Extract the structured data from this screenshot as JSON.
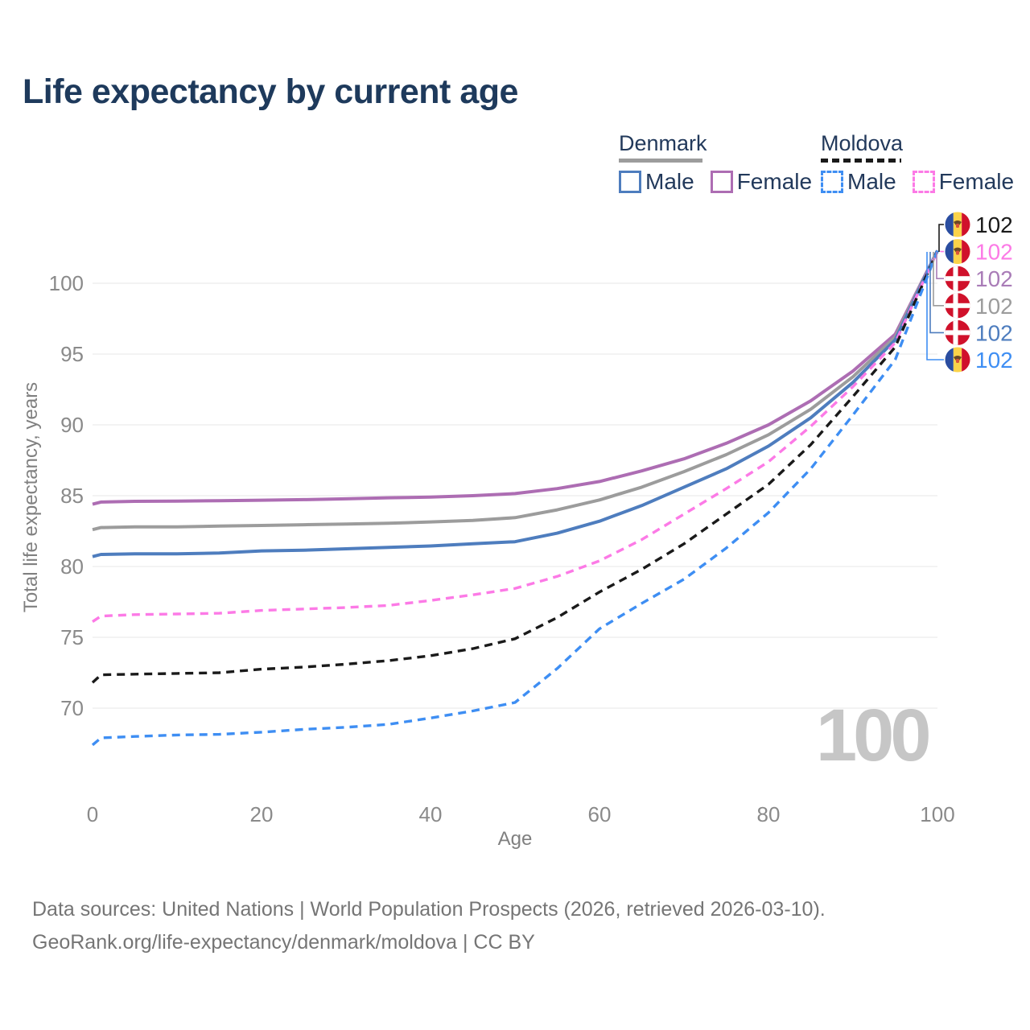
{
  "title": "Life expectancy by current age",
  "watermark": "100",
  "footer": {
    "line1": "Data sources: United Nations | World Population Prospects (2026, retrieved 2026-03-10).",
    "line2": "GeoRank.org/life-expectancy/denmark/moldova | CC BY"
  },
  "legend": {
    "groups": [
      {
        "country": "Denmark",
        "underline_style": "solid",
        "underline_color": "#9c9c9c",
        "underline_width": 104,
        "items": [
          {
            "label": "Male",
            "color": "#4e7dbe",
            "dashed": false
          },
          {
            "label": "Female",
            "color": "#ad6db3",
            "dashed": false
          }
        ]
      },
      {
        "country": "Moldova",
        "underline_style": "dashed",
        "underline_color": "#1a1a1a",
        "underline_width": 100,
        "items": [
          {
            "label": "Male",
            "color": "#3e8ef3",
            "dashed": true
          },
          {
            "label": "Female",
            "color": "#fc7ae6",
            "dashed": true
          }
        ]
      }
    ]
  },
  "chart_data": {
    "type": "line",
    "title": "Life expectancy by current age",
    "xlabel": "Age",
    "ylabel": "Total life expectancy, years",
    "x_ticks": [
      0,
      20,
      40,
      60,
      80,
      100
    ],
    "y_ticks": [
      70,
      75,
      80,
      85,
      90,
      95,
      100
    ],
    "xlim": [
      0,
      100
    ],
    "ylim": [
      66,
      103
    ],
    "grid": "horizontal-only",
    "legend_position": "top-right",
    "x": [
      0,
      1,
      5,
      10,
      15,
      20,
      25,
      30,
      35,
      40,
      45,
      50,
      55,
      60,
      65,
      70,
      75,
      80,
      85,
      90,
      95,
      100
    ],
    "series": [
      {
        "name": "Denmark Female",
        "country": "Denmark",
        "sex": "Female",
        "color": "#ad6db3",
        "dashed": false,
        "values": [
          84.4,
          84.55,
          84.6,
          84.62,
          84.65,
          84.68,
          84.72,
          84.78,
          84.85,
          84.9,
          85.0,
          85.15,
          85.5,
          86.0,
          86.75,
          87.6,
          88.7,
          90.0,
          91.7,
          93.8,
          96.4,
          102.3
        ]
      },
      {
        "name": "Denmark Both sexes",
        "country": "Denmark",
        "sex": "Both",
        "color": "#9c9c9c",
        "dashed": false,
        "values": [
          82.6,
          82.75,
          82.8,
          82.8,
          82.85,
          82.9,
          82.95,
          83.0,
          83.05,
          83.15,
          83.25,
          83.45,
          84.0,
          84.7,
          85.6,
          86.7,
          87.9,
          89.3,
          91.1,
          93.4,
          96.2,
          102.3
        ]
      },
      {
        "name": "Denmark Male",
        "country": "Denmark",
        "sex": "Male",
        "color": "#4e7dbe",
        "dashed": false,
        "values": [
          80.7,
          80.85,
          80.9,
          80.9,
          80.95,
          81.1,
          81.15,
          81.25,
          81.35,
          81.45,
          81.6,
          81.75,
          82.35,
          83.2,
          84.3,
          85.6,
          86.9,
          88.5,
          90.5,
          93.0,
          96.0,
          102.3
        ]
      },
      {
        "name": "Moldova Female",
        "country": "Moldova",
        "sex": "Female",
        "color": "#fc7ae6",
        "dashed": true,
        "values": [
          76.1,
          76.5,
          76.6,
          76.65,
          76.7,
          76.9,
          77.0,
          77.1,
          77.25,
          77.6,
          78.0,
          78.45,
          79.3,
          80.4,
          81.9,
          83.7,
          85.5,
          87.4,
          89.9,
          92.7,
          95.8,
          102.3
        ]
      },
      {
        "name": "Moldova Both sexes",
        "country": "Moldova",
        "sex": "Both",
        "color": "#1a1a1a",
        "dashed": true,
        "values": [
          71.8,
          72.35,
          72.4,
          72.45,
          72.5,
          72.75,
          72.9,
          73.1,
          73.35,
          73.7,
          74.2,
          74.9,
          76.4,
          78.2,
          79.8,
          81.6,
          83.7,
          85.8,
          88.6,
          92.0,
          95.5,
          102.3
        ]
      },
      {
        "name": "Moldova Male",
        "country": "Moldova",
        "sex": "Male",
        "color": "#3e8ef3",
        "dashed": true,
        "values": [
          67.4,
          67.9,
          68.0,
          68.1,
          68.15,
          68.3,
          68.5,
          68.65,
          68.85,
          69.3,
          69.8,
          70.4,
          72.8,
          75.6,
          77.4,
          79.1,
          81.3,
          83.8,
          86.9,
          90.7,
          94.6,
          102.3
        ]
      }
    ],
    "end_labels": [
      {
        "series": "Moldova Both sexes",
        "flag": "moldova-flag-icon",
        "value": "102",
        "color": "#1a1a1a"
      },
      {
        "series": "Moldova Female",
        "flag": "moldova-flag-icon",
        "value": "102",
        "color": "#fc7ae6"
      },
      {
        "series": "Denmark Female",
        "flag": "denmark-flag-icon",
        "value": "102",
        "color": "#a97cb7"
      },
      {
        "series": "Denmark Both sexes",
        "flag": "denmark-flag-icon",
        "value": "102",
        "color": "#9c9c9c"
      },
      {
        "series": "Denmark Male",
        "flag": "denmark-flag-icon",
        "value": "102",
        "color": "#4e7dbe"
      },
      {
        "series": "Moldova Male",
        "flag": "moldova-flag-icon",
        "value": "102",
        "color": "#3e8ef3"
      }
    ]
  }
}
